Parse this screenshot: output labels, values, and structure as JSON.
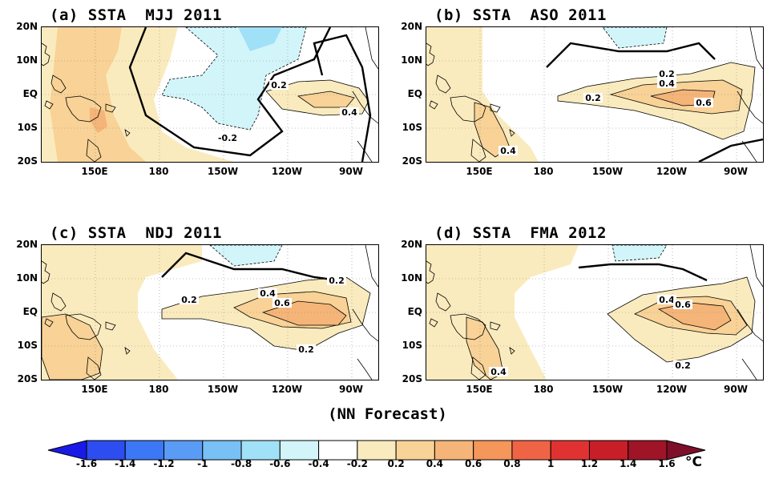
{
  "panels": [
    {
      "id": "a",
      "title": "(a) SSTA  MJJ 2011",
      "labels": [
        "0.2",
        "0.4",
        "-0.2"
      ]
    },
    {
      "id": "b",
      "title": "(b) SSTA  ASO 2011",
      "labels": [
        "0.2",
        "0.4",
        "0.2",
        "0.6",
        "0.4"
      ]
    },
    {
      "id": "c",
      "title": "(c) SSTA  NDJ 2011",
      "labels": [
        "0.2",
        "0.4",
        "0.6",
        "0.2",
        "0.2"
      ]
    },
    {
      "id": "d",
      "title": "(d) SSTA  FMA 2012",
      "labels": [
        "0.4",
        "0.6",
        "0.2",
        "0.4"
      ]
    }
  ],
  "lat_ticks": [
    "20N",
    "10N",
    "EQ",
    "10S",
    "20S"
  ],
  "lon_ticks": [
    "150E",
    "180",
    "150W",
    "120W",
    "90W"
  ],
  "footer": "(NN Forecast)",
  "colorbar": {
    "ticks": [
      "-1.6",
      "-1.4",
      "-1.2",
      "-1",
      "-0.8",
      "-0.6",
      "-0.4",
      "-0.2",
      "0.2",
      "0.4",
      "0.6",
      "0.8",
      "1",
      "1.2",
      "1.4",
      "1.6"
    ],
    "colors": [
      "#1a1ae6",
      "#2d4df0",
      "#3c78f5",
      "#5a9bf5",
      "#78c0f5",
      "#a0e1f8",
      "#d2f5fa",
      "#ffffff",
      "#faebbe",
      "#f8d296",
      "#f5b478",
      "#f5965a",
      "#f06446",
      "#e13232",
      "#c81e28",
      "#a01428",
      "#7d0f28"
    ],
    "unit": "°C"
  }
}
